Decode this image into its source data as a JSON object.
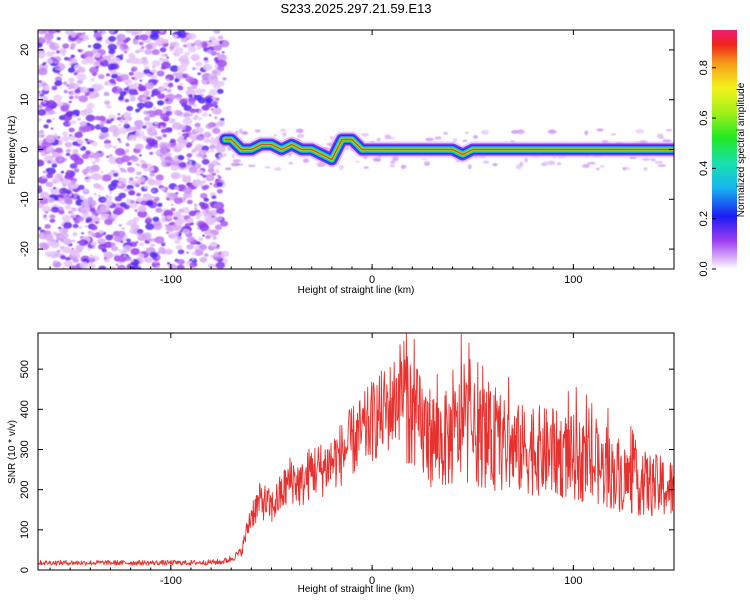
{
  "title": "S233.2025.297.21.59.E13",
  "chart_data": [
    {
      "type": "heatmap",
      "xlabel": "Height of straight line (km)",
      "ylabel": "Frequency (Hz)",
      "xlim": [
        -166,
        150
      ],
      "ylim": [
        -24,
        24
      ],
      "x_ticks": [
        -100,
        0,
        100
      ],
      "y_ticks": [
        -20,
        -10,
        0,
        10,
        20
      ],
      "colorbar": {
        "label": "Normalized spectral amplitude",
        "range": [
          0,
          0.95
        ],
        "ticks": [
          0.0,
          0.2,
          0.4,
          0.6,
          0.8
        ]
      },
      "noise_region_x": [
        -166,
        -73
      ],
      "ridge": {
        "x": [
          -73,
          -70,
          -65,
          -60,
          -55,
          -50,
          -45,
          -40,
          -35,
          -30,
          -25,
          -20,
          -15,
          -10,
          -5,
          0,
          20,
          40,
          45,
          50,
          60,
          80,
          100,
          120,
          150
        ],
        "freq": [
          2,
          2,
          0,
          0,
          1,
          1,
          0,
          1,
          0,
          0,
          -1,
          -2,
          2,
          2,
          0,
          0,
          0,
          0,
          -1,
          0,
          0,
          0,
          0,
          0,
          0
        ]
      }
    },
    {
      "type": "line",
      "xlabel": "Height of straight line (km)",
      "ylabel": "SNR (10 * v/v)",
      "xlim": [
        -166,
        150
      ],
      "ylim": [
        0,
        590
      ],
      "x_ticks": [
        -100,
        0,
        100
      ],
      "y_ticks": [
        0,
        100,
        200,
        300,
        400,
        500
      ],
      "color": "#e8312e",
      "envelope": {
        "x": [
          -166,
          -150,
          -130,
          -110,
          -90,
          -75,
          -70,
          -65,
          -60,
          -55,
          -50,
          -45,
          -40,
          -35,
          -30,
          -25,
          -20,
          -15,
          -10,
          -5,
          0,
          5,
          10,
          15,
          18,
          20,
          25,
          30,
          35,
          40,
          45,
          50,
          60,
          70,
          80,
          90,
          100,
          110,
          120,
          130,
          140,
          150
        ],
        "y": [
          18,
          18,
          18,
          18,
          18,
          20,
          28,
          45,
          140,
          175,
          155,
          190,
          230,
          210,
          250,
          250,
          270,
          290,
          320,
          340,
          370,
          390,
          410,
          460,
          420,
          380,
          350,
          330,
          320,
          330,
          360,
          340,
          320,
          300,
          300,
          290,
          280,
          260,
          240,
          220,
          210,
          200
        ]
      }
    }
  ]
}
